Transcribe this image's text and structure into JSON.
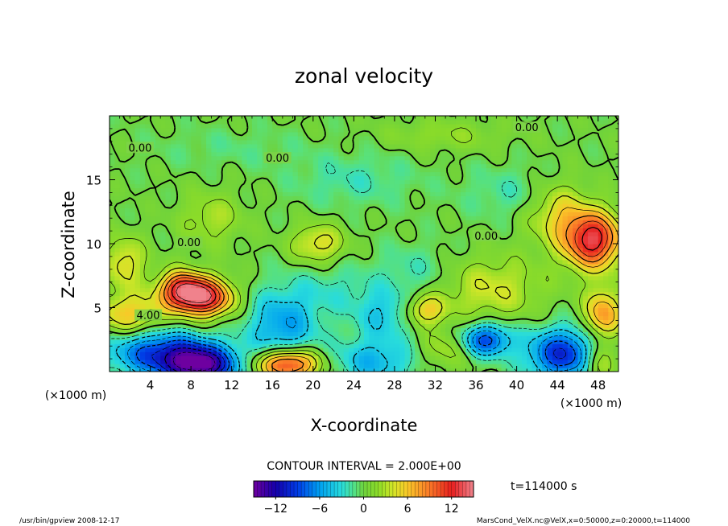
{
  "chart_data": {
    "type": "heatmap",
    "title": "zonal velocity",
    "xlabel": "X-coordinate",
    "ylabel": "Z-coordinate",
    "x_unit": "(×1000 m)",
    "y_unit": "(×1000 m)",
    "xlim": [
      0,
      50
    ],
    "ylim": [
      0,
      20
    ],
    "x_ticks": [
      "4",
      "8",
      "12",
      "16",
      "20",
      "24",
      "28",
      "32",
      "36",
      "40",
      "44",
      "48"
    ],
    "y_ticks": [
      "5",
      "10",
      "15"
    ],
    "contour_interval_text": "CONTOUR INTERVAL = 2.000E+00",
    "time_text": "t=114000 s",
    "colorbar_ticks": [
      "−12",
      "−6",
      "0",
      "6",
      "12"
    ],
    "colorbar_range": [
      -15,
      15
    ],
    "contour_labels": [
      {
        "text": "0.00",
        "x": 3.0,
        "z": 17.4
      },
      {
        "text": "0.00",
        "x": 16.5,
        "z": 16.6
      },
      {
        "text": "0.00",
        "x": 41.0,
        "z": 19.0
      },
      {
        "text": "0.00",
        "x": 37.0,
        "z": 10.5
      },
      {
        "text": "0.00",
        "x": 7.8,
        "z": 10.0
      },
      {
        "text": "4.00",
        "x": 3.8,
        "z": 4.3
      }
    ],
    "features": [
      {
        "x": 2,
        "z": 4.5,
        "value": 6,
        "w": 3.5,
        "h": 1.6
      },
      {
        "x": 7,
        "z": 6.5,
        "value": 10,
        "w": 2.2,
        "h": 1.4
      },
      {
        "x": 9.3,
        "z": 5.8,
        "value": 13,
        "w": 2.8,
        "h": 1.5
      },
      {
        "x": 5,
        "z": 1.5,
        "value": -9,
        "w": 5,
        "h": 1.8
      },
      {
        "x": 9,
        "z": 0.5,
        "value": -13,
        "w": 3.5,
        "h": 1.5
      },
      {
        "x": 17.5,
        "z": 0.6,
        "value": 13,
        "w": 3,
        "h": 1.2
      },
      {
        "x": 17,
        "z": 3.5,
        "value": -6,
        "w": 3.5,
        "h": 3
      },
      {
        "x": 26,
        "z": 0.8,
        "value": -5,
        "w": 4,
        "h": 1.8
      },
      {
        "x": 27,
        "z": 4.5,
        "value": -4,
        "w": 3,
        "h": 2
      },
      {
        "x": 31,
        "z": 4.8,
        "value": 6,
        "w": 2,
        "h": 1.2
      },
      {
        "x": 20.5,
        "z": 10.0,
        "value": 5,
        "w": 2.5,
        "h": 1.5
      },
      {
        "x": 37,
        "z": 2.5,
        "value": -9,
        "w": 2.5,
        "h": 1.3
      },
      {
        "x": 44.5,
        "z": 1.4,
        "value": -10,
        "w": 3.5,
        "h": 2
      },
      {
        "x": 47.5,
        "z": 10.3,
        "value": 13,
        "w": 2.8,
        "h": 2.2
      },
      {
        "x": 44,
        "z": 12.5,
        "value": 5,
        "w": 3,
        "h": 2.5
      },
      {
        "x": 37.5,
        "z": 6.5,
        "value": 4,
        "w": 5,
        "h": 2.5
      },
      {
        "x": 30,
        "z": 8,
        "value": -2,
        "w": 4,
        "h": 2
      },
      {
        "x": 22,
        "z": 6.5,
        "value": -2,
        "w": 4,
        "h": 2
      },
      {
        "x": 10,
        "z": 12,
        "value": 3,
        "w": 3,
        "h": 2
      },
      {
        "x": 24,
        "z": 15,
        "value": -2,
        "w": 6,
        "h": 2
      },
      {
        "x": 40,
        "z": 14,
        "value": -2,
        "w": 5,
        "h": 2
      },
      {
        "x": 12,
        "z": 17.5,
        "value": -1,
        "w": 8,
        "h": 1.5
      },
      {
        "x": 33,
        "z": 18.5,
        "value": 2,
        "w": 6,
        "h": 1.2
      },
      {
        "x": 48.5,
        "z": 4.5,
        "value": 8,
        "w": 1.8,
        "h": 2
      },
      {
        "x": 48,
        "z": 0.6,
        "value": 5,
        "w": 1.5,
        "h": 1.5
      },
      {
        "x": 1.5,
        "z": 8.5,
        "value": 5,
        "w": 2,
        "h": 2
      },
      {
        "x": 33,
        "z": 1.8,
        "value": 3,
        "w": 2.5,
        "h": 1.5
      }
    ]
  },
  "footer": {
    "left": "/usr/bin/gpview   2008-12-17",
    "right": "MarsCond_VelX.nc@VelX,x=0:50000,z=0:20000,t=114000"
  }
}
